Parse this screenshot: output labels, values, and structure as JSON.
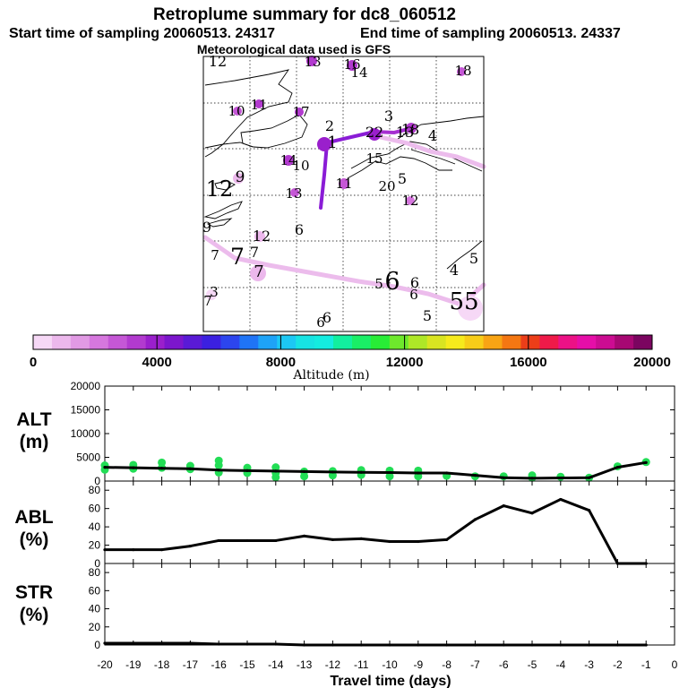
{
  "title": "Retroplume summary for dc8_060512",
  "start_text": "Start time of sampling 20060513. 24317",
  "end_text": "End time of sampling 20060513. 24337",
  "met_text": "Meteorological data used is GFS",
  "colorbar": {
    "label": "Altitude (m)",
    "ticks": [
      "0",
      "4000",
      "8000",
      "12000",
      "16000",
      "20000"
    ],
    "colors": [
      "#f6d8f6",
      "#ecb8ec",
      "#e19ae4",
      "#d677de",
      "#c557d6",
      "#b23acf",
      "#9a1fcc",
      "#7c16cd",
      "#5a1ad6",
      "#3b20e0",
      "#2c45ee",
      "#1f74f6",
      "#1ea3f7",
      "#1cc8f4",
      "#17e3e3",
      "#14ece0",
      "#12ef9f",
      "#1aee66",
      "#28ec36",
      "#6ee82c",
      "#aee727",
      "#d9e421",
      "#f6ea1c",
      "#f7cd18",
      "#f8a414",
      "#f47712",
      "#ec3e19",
      "#ef1a49",
      "#ec1186",
      "#e60ea8",
      "#cc0c92",
      "#a70873",
      "#7b0560"
    ]
  },
  "map_labels": [
    {
      "t": "12",
      "x": 243,
      "y": 74,
      "s": 16
    },
    {
      "t": "13",
      "x": 349,
      "y": 74,
      "s": 15
    },
    {
      "t": "16",
      "x": 393,
      "y": 77,
      "s": 15
    },
    {
      "t": "14",
      "x": 401,
      "y": 86,
      "s": 15
    },
    {
      "t": "18",
      "x": 517,
      "y": 84,
      "s": 15
    },
    {
      "t": "10",
      "x": 264,
      "y": 129,
      "s": 15
    },
    {
      "t": "11",
      "x": 289,
      "y": 122,
      "s": 15
    },
    {
      "t": "17",
      "x": 336,
      "y": 130,
      "s": 15
    },
    {
      "t": "2",
      "x": 368,
      "y": 146,
      "s": 16
    },
    {
      "t": "3",
      "x": 434,
      "y": 135,
      "s": 16
    },
    {
      "t": "18",
      "x": 458,
      "y": 150,
      "s": 16
    },
    {
      "t": "4",
      "x": 483,
      "y": 157,
      "s": 16
    },
    {
      "t": "22",
      "x": 418,
      "y": 153,
      "s": 16
    },
    {
      "t": "13",
      "x": 452,
      "y": 153,
      "s": 16
    },
    {
      "t": "1",
      "x": 371,
      "y": 165,
      "s": 18
    },
    {
      "t": "15",
      "x": 418,
      "y": 182,
      "s": 15
    },
    {
      "t": "14",
      "x": 322,
      "y": 184,
      "s": 15
    },
    {
      "t": "10",
      "x": 336,
      "y": 190,
      "s": 15
    },
    {
      "t": "9",
      "x": 268,
      "y": 203,
      "s": 17
    },
    {
      "t": "11",
      "x": 384,
      "y": 210,
      "s": 15
    },
    {
      "t": "20",
      "x": 432,
      "y": 213,
      "s": 15
    },
    {
      "t": "5",
      "x": 449,
      "y": 205,
      "s": 16
    },
    {
      "t": "12",
      "x": 245,
      "y": 219,
      "s": 24
    },
    {
      "t": "13",
      "x": 328,
      "y": 221,
      "s": 15
    },
    {
      "t": "12",
      "x": 458,
      "y": 229,
      "s": 15
    },
    {
      "t": "6",
      "x": 334,
      "y": 262,
      "s": 16
    },
    {
      "t": "9",
      "x": 231,
      "y": 259,
      "s": 16
    },
    {
      "t": "12",
      "x": 292,
      "y": 269,
      "s": 16
    },
    {
      "t": "7",
      "x": 284,
      "y": 287,
      "s": 16
    },
    {
      "t": "7",
      "x": 240,
      "y": 290,
      "s": 15
    },
    {
      "t": "7",
      "x": 265,
      "y": 295,
      "s": 25
    },
    {
      "t": "7",
      "x": 289,
      "y": 309,
      "s": 18
    },
    {
      "t": "4",
      "x": 507,
      "y": 307,
      "s": 16
    },
    {
      "t": "5",
      "x": 529,
      "y": 294,
      "s": 16
    },
    {
      "t": "6",
      "x": 438,
      "y": 323,
      "s": 27
    },
    {
      "t": "6",
      "x": 463,
      "y": 321,
      "s": 16
    },
    {
      "t": "6",
      "x": 462,
      "y": 334,
      "s": 15
    },
    {
      "t": "3",
      "x": 239,
      "y": 331,
      "s": 15
    },
    {
      "t": "7",
      "x": 232,
      "y": 341,
      "s": 15
    },
    {
      "t": "5",
      "x": 423,
      "y": 322,
      "s": 15
    },
    {
      "t": "55",
      "x": 518,
      "y": 345,
      "s": 26
    },
    {
      "t": "5",
      "x": 477,
      "y": 358,
      "s": 16
    },
    {
      "t": "6",
      "x": 365,
      "y": 360,
      "s": 16
    },
    {
      "t": "6",
      "x": 358,
      "y": 365,
      "s": 15
    }
  ],
  "panels": [
    {
      "label_line1": "ALT",
      "label_line2": "(m)",
      "yticks": [
        "20000",
        "15000",
        "10000",
        "5000",
        "0"
      ]
    },
    {
      "label_line1": "ABL",
      "label_line2": "(%)",
      "yticks": [
        "80",
        "60",
        "40",
        "20",
        "0"
      ]
    },
    {
      "label_line1": "STR",
      "label_line2": "(%)",
      "yticks": [
        "80",
        "60",
        "40",
        "20",
        "0"
      ]
    }
  ],
  "chart_data": [
    {
      "type": "line",
      "title": "ALT",
      "xlabel": "Travel time (days)",
      "ylabel": "ALT (m)",
      "xlim": [
        -20,
        0
      ],
      "ylim": [
        0,
        20000
      ],
      "x": [
        -20,
        -19,
        -18,
        -17,
        -16,
        -15,
        -14,
        -13,
        -12,
        -11,
        -10,
        -9,
        -8,
        -7,
        -6,
        -5,
        -4,
        -3,
        -2,
        -1
      ],
      "values": [
        2900,
        2800,
        2700,
        2600,
        2300,
        2200,
        2100,
        2000,
        1900,
        1850,
        1800,
        1700,
        1700,
        1200,
        700,
        600,
        650,
        700,
        2900,
        3900
      ],
      "scatter_points": [
        {
          "x": -20,
          "y": 3300
        },
        {
          "x": -20,
          "y": 2400
        },
        {
          "x": -19,
          "y": 3400
        },
        {
          "x": -19,
          "y": 2600
        },
        {
          "x": -18,
          "y": 3900
        },
        {
          "x": -18,
          "y": 2800
        },
        {
          "x": -17,
          "y": 3200
        },
        {
          "x": -17,
          "y": 2500
        },
        {
          "x": -16,
          "y": 4300
        },
        {
          "x": -16,
          "y": 3300
        },
        {
          "x": -16,
          "y": 1800
        },
        {
          "x": -15,
          "y": 2800
        },
        {
          "x": -15,
          "y": 1700
        },
        {
          "x": -14,
          "y": 2900
        },
        {
          "x": -14,
          "y": 1700
        },
        {
          "x": -14,
          "y": 800
        },
        {
          "x": -13,
          "y": 2000
        },
        {
          "x": -13,
          "y": 1000
        },
        {
          "x": -12,
          "y": 2100
        },
        {
          "x": -12,
          "y": 1200
        },
        {
          "x": -11,
          "y": 2300
        },
        {
          "x": -11,
          "y": 1300
        },
        {
          "x": -10,
          "y": 2200
        },
        {
          "x": -10,
          "y": 1000
        },
        {
          "x": -9,
          "y": 2200
        },
        {
          "x": -9,
          "y": 1000
        },
        {
          "x": -8,
          "y": 1100
        },
        {
          "x": -7,
          "y": 1000
        },
        {
          "x": -6,
          "y": 1000
        },
        {
          "x": -5,
          "y": 1200
        },
        {
          "x": -5,
          "y": 700
        },
        {
          "x": -4,
          "y": 900
        },
        {
          "x": -3,
          "y": 700
        },
        {
          "x": -2,
          "y": 3100
        },
        {
          "x": -1,
          "y": 4000
        }
      ]
    },
    {
      "type": "line",
      "title": "ABL",
      "ylabel": "ABL (%)",
      "xlim": [
        -20,
        0
      ],
      "ylim": [
        0,
        90
      ],
      "x": [
        -20,
        -19,
        -18,
        -17,
        -16,
        -15,
        -14,
        -13,
        -12,
        -11,
        -10,
        -9,
        -8,
        -7,
        -6,
        -5,
        -4,
        -3,
        -2,
        -1
      ],
      "values": [
        15,
        15,
        15,
        19,
        25,
        25,
        25,
        30,
        26,
        27,
        24,
        24,
        26,
        48,
        63,
        55,
        70,
        58,
        0,
        0
      ]
    },
    {
      "type": "line",
      "title": "STR",
      "xlabel": "Travel time (days)",
      "ylabel": "STR (%)",
      "xlim": [
        -20,
        0
      ],
      "ylim": [
        0,
        90
      ],
      "x": [
        -20,
        -19,
        -18,
        -17,
        -16,
        -15,
        -14,
        -13,
        -12,
        -11,
        -10,
        -9,
        -8,
        -7,
        -6,
        -5,
        -4,
        -3,
        -2,
        -1
      ],
      "values": [
        2,
        2,
        2,
        2,
        1,
        1,
        1,
        0,
        0,
        0,
        0,
        0,
        0,
        0,
        0,
        0,
        0,
        0,
        0,
        0
      ]
    }
  ],
  "x_tick_labels": [
    "-20",
    "-19",
    "-18",
    "-17",
    "-16",
    "-15",
    "-14",
    "-13",
    "-12",
    "-11",
    "-10",
    "-9",
    "-8",
    "-7",
    "-6",
    "-5",
    "-4",
    "-3",
    "-2",
    "-1",
    "0"
  ],
  "x_axis_label": "Travel time (days)"
}
